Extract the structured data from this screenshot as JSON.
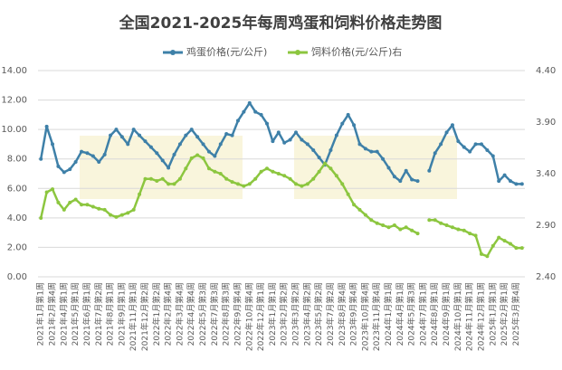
{
  "chart_data": {
    "type": "line",
    "title": "全国2021-2025年每周鸡蛋和饲料价格走势图",
    "categories": [
      "2021年1月第1周",
      null,
      "2021年2月第4周",
      null,
      "2021年4月第1周",
      null,
      "2021年5月第1周",
      null,
      "2021年6月第1周",
      null,
      "2021年7月第2周",
      null,
      "2021年8月第1周",
      null,
      "2021年9月第1周",
      null,
      "2021年11月第1周",
      null,
      "2021年12月第2周",
      null,
      "2022年1月第2周",
      null,
      "2022年2月第4周",
      null,
      "2022年3月第4周",
      null,
      "2022年4月第4周",
      null,
      "2022年5月第3周",
      null,
      "2022年7月第3周",
      null,
      "2022年8月第3周",
      null,
      "2022年9月第4周",
      null,
      "2022年10月第4周",
      null,
      "2022年12月第1周",
      null,
      "2023年1月第1周",
      null,
      "2023年2月第2周",
      null,
      "2023年3月第2周",
      null,
      "2023年4月第2周",
      null,
      "2023年5月第2周",
      null,
      "2023年7月第2周",
      null,
      "2023年8月第4周",
      null,
      "2023年9月第4周",
      null,
      "2023年10月第4周",
      null,
      "2023年11月第4周",
      null,
      "2024年1月第1周",
      null,
      "2024年4月第1周",
      null,
      "2024年5月第3周",
      null,
      "2024年7月第1周",
      null,
      "2024年8月第1周",
      null,
      "2024年9月第1周",
      null,
      "2024年10月第1周",
      null,
      "2024年11月第1周",
      null,
      "2024年12月第1周",
      null,
      "2025年1月第1周",
      null,
      "2025年2月第1周",
      null,
      "2025年3月第4周",
      null
    ],
    "series": [
      {
        "name": "鸡蛋价格(元/公斤)",
        "color": "#3e80a8",
        "values": [
          8.0,
          10.2,
          9.0,
          7.5,
          7.1,
          7.3,
          7.8,
          8.5,
          8.4,
          8.2,
          7.8,
          8.3,
          9.6,
          10.0,
          9.5,
          9.0,
          10.0,
          9.6,
          9.2,
          8.8,
          8.4,
          7.9,
          7.4,
          8.3,
          9.0,
          9.6,
          10.0,
          9.5,
          9.0,
          8.5,
          8.2,
          9.0,
          9.7,
          9.6,
          10.6,
          11.2,
          11.8,
          11.2,
          11.0,
          10.4,
          9.2,
          9.8,
          9.1,
          9.3,
          9.8,
          9.3,
          9.0,
          8.6,
          8.1,
          7.6,
          8.6,
          9.6,
          10.4,
          11.0,
          10.3,
          9.0,
          8.7,
          8.5,
          8.5,
          8.0,
          7.4,
          6.8,
          6.5,
          7.2,
          6.6,
          6.5,
          null,
          7.2,
          8.4,
          9.0,
          9.8,
          10.3,
          9.2,
          8.8,
          8.5,
          9.0,
          9.0,
          8.6,
          8.2,
          6.5,
          6.9,
          6.5,
          6.3,
          6.3
        ]
      },
      {
        "name": "饲料价格(元/公斤)右",
        "color": "#8cc63f",
        "axis": "y2",
        "values": [
          2.97,
          3.22,
          3.25,
          3.12,
          3.05,
          3.12,
          3.15,
          3.1,
          3.1,
          3.08,
          3.06,
          3.05,
          3.0,
          2.98,
          3.0,
          3.02,
          3.05,
          3.2,
          3.35,
          3.35,
          3.33,
          3.35,
          3.3,
          3.3,
          3.35,
          3.45,
          3.55,
          3.58,
          3.55,
          3.45,
          3.42,
          3.4,
          3.35,
          3.32,
          3.3,
          3.28,
          3.3,
          3.35,
          3.42,
          3.45,
          3.42,
          3.4,
          3.38,
          3.35,
          3.3,
          3.28,
          3.3,
          3.35,
          3.42,
          3.5,
          3.45,
          3.38,
          3.3,
          3.2,
          3.1,
          3.05,
          3.0,
          2.95,
          2.92,
          2.9,
          2.88,
          2.9,
          2.86,
          2.88,
          2.85,
          2.82,
          null,
          2.95,
          2.95,
          2.92,
          2.9,
          2.88,
          2.86,
          2.85,
          2.82,
          2.8,
          2.62,
          2.6,
          2.7,
          2.78,
          2.75,
          2.72,
          2.68,
          2.68
        ]
      }
    ],
    "ylim": [
      0,
      14
    ],
    "yticks": [
      {
        "value": 0,
        "label": "0.00"
      },
      {
        "value": 2,
        "label": "2.00"
      },
      {
        "value": 4,
        "label": "4.00"
      },
      {
        "value": 6,
        "label": "6.00"
      },
      {
        "value": 8,
        "label": "8.00"
      },
      {
        "value": 10,
        "label": "10.00"
      },
      {
        "value": 12,
        "label": "12.00"
      },
      {
        "value": 14,
        "label": "14.00"
      }
    ],
    "y2lim": [
      2.4,
      4.4
    ],
    "y2ticks": [
      {
        "value": 2.4,
        "label": "2.40"
      },
      {
        "value": 2.9,
        "label": "2.90"
      },
      {
        "value": 3.4,
        "label": "3.40"
      },
      {
        "value": 3.9,
        "label": "3.90"
      },
      {
        "value": 4.4,
        "label": "4.40"
      }
    ],
    "grid": true
  }
}
